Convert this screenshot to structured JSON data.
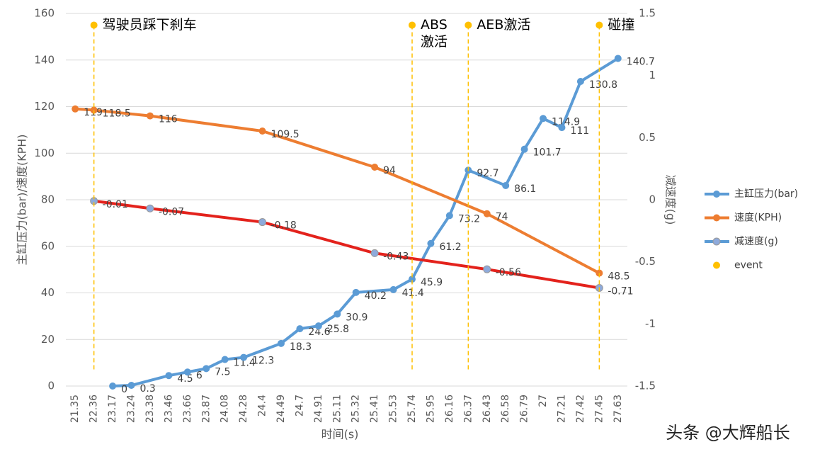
{
  "chart_data": {
    "type": "line",
    "xlabel": "时间(s)",
    "ylabel": "主缸压力(bar)/速度(KPH)",
    "y2label": "减速度(g)",
    "categories": [
      "21.35",
      "22.36",
      "23.17",
      "23.24",
      "23.38",
      "23.46",
      "23.66",
      "23.87",
      "24.08",
      "24.28",
      "24.4",
      "24.49",
      "24.7",
      "24.91",
      "25.11",
      "25.32",
      "25.41",
      "25.53",
      "25.74",
      "25.95",
      "26.16",
      "26.37",
      "26.43",
      "26.58",
      "26.79",
      "27",
      "27.21",
      "27.42",
      "27.45",
      "27.63"
    ],
    "ylim": [
      0,
      160
    ],
    "yticks": [
      0,
      20,
      40,
      60,
      80,
      100,
      120,
      140,
      160
    ],
    "y2lim": [
      -1.5,
      1.5
    ],
    "y2ticks": [
      -1.5,
      -1,
      -0.5,
      0,
      0.5,
      1,
      1.5
    ],
    "grid": true,
    "connect_gaps": true,
    "legend": "right",
    "series": [
      {
        "name": "主缸压力(bar)",
        "color": "#5b9bd5",
        "data_labels": true,
        "values": [
          null,
          null,
          0,
          0.3,
          null,
          4.5,
          6,
          7.5,
          11.4,
          12.3,
          null,
          18.3,
          24.6,
          25.8,
          30.9,
          40.2,
          null,
          41.4,
          45.9,
          61.2,
          73.2,
          92.7,
          null,
          86.1,
          101.7,
          114.9,
          111,
          130.8,
          null,
          140.7
        ]
      },
      {
        "name": "速度(KPH)",
        "color": "#ed7d31",
        "data_labels": true,
        "values": [
          119,
          118.5,
          null,
          null,
          116,
          null,
          null,
          null,
          null,
          null,
          109.5,
          null,
          null,
          null,
          null,
          null,
          94,
          null,
          null,
          null,
          null,
          null,
          74,
          null,
          null,
          null,
          null,
          null,
          48.5,
          null
        ]
      },
      {
        "name": "减速度(g)",
        "color": "#e3221c",
        "marker_color": "#8eaadb",
        "legend_color": "#5b9bd5",
        "axis": "y2",
        "data_labels": true,
        "values": [
          null,
          -0.01,
          null,
          null,
          -0.07,
          null,
          null,
          null,
          null,
          null,
          -0.18,
          null,
          null,
          null,
          null,
          null,
          -0.43,
          null,
          null,
          null,
          null,
          null,
          -0.56,
          null,
          null,
          null,
          null,
          null,
          -0.71,
          null
        ]
      },
      {
        "name": "event",
        "color": "#ffc000",
        "line": false,
        "values": [
          null,
          155,
          null,
          null,
          null,
          null,
          null,
          null,
          null,
          null,
          null,
          null,
          null,
          null,
          null,
          null,
          null,
          null,
          155,
          null,
          null,
          155,
          null,
          null,
          null,
          null,
          null,
          null,
          155,
          null
        ],
        "annotations": [
          "驾驶员踩下刹车",
          "ABS\n激活",
          "AEB激活",
          "碰撞"
        ]
      }
    ]
  },
  "watermark": "头条 @大辉船长"
}
